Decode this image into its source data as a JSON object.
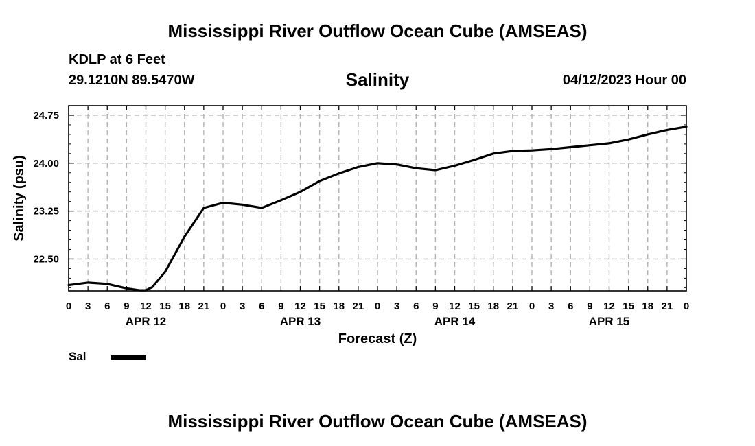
{
  "header": {
    "title": "Mississippi River Outflow Ocean Cube (AMSEAS)",
    "station": "KDLP at 6 Feet",
    "coordinates": "29.1210N  89.5470W",
    "parameter": "Salinity",
    "datetime": "04/12/2023 Hour 00"
  },
  "footer": {
    "title": "Mississippi River Outflow Ocean Cube (AMSEAS)"
  },
  "legend": {
    "label": "Sal",
    "color": "#000000"
  },
  "chart_data": {
    "type": "line",
    "title": "Salinity",
    "xlabel": "Forecast (Z)",
    "ylabel": "Salinity (psu)",
    "xlim": [
      0,
      96
    ],
    "ylim": [
      22.0,
      24.9
    ],
    "yticks": [
      22.5,
      23.25,
      24.0,
      24.75
    ],
    "ytick_labels": [
      "22.50",
      "23.25",
      "24.00",
      "24.75"
    ],
    "xticks": [
      0,
      3,
      6,
      9,
      12,
      15,
      18,
      21,
      24,
      27,
      30,
      33,
      36,
      39,
      42,
      45,
      48,
      51,
      54,
      57,
      60,
      63,
      66,
      69,
      72,
      75,
      78,
      81,
      84,
      87,
      90,
      93,
      96
    ],
    "xtick_labels": [
      "0",
      "3",
      "6",
      "9",
      "12",
      "15",
      "18",
      "21",
      "0",
      "3",
      "6",
      "9",
      "12",
      "15",
      "18",
      "21",
      "0",
      "3",
      "6",
      "9",
      "12",
      "15",
      "18",
      "21",
      "0",
      "3",
      "6",
      "9",
      "12",
      "15",
      "18",
      "21",
      "0"
    ],
    "day_labels": [
      {
        "x": 12,
        "label": "APR 12"
      },
      {
        "x": 36,
        "label": "APR 13"
      },
      {
        "x": 60,
        "label": "APR 14"
      },
      {
        "x": 84,
        "label": "APR 15"
      }
    ],
    "grid": true,
    "series": [
      {
        "name": "Sal",
        "x": [
          0,
          3,
          6,
          9,
          11,
          12,
          13,
          15,
          18,
          21,
          24,
          27,
          30,
          33,
          36,
          39,
          42,
          45,
          48,
          51,
          54,
          57,
          60,
          63,
          66,
          69,
          72,
          75,
          78,
          81,
          84,
          87,
          90,
          93,
          96
        ],
        "values": [
          22.09,
          22.13,
          22.11,
          22.04,
          22.01,
          22.01,
          22.06,
          22.3,
          22.85,
          23.3,
          23.38,
          23.35,
          23.3,
          23.42,
          23.55,
          23.72,
          23.84,
          23.94,
          24.0,
          23.98,
          23.92,
          23.89,
          23.96,
          24.05,
          24.15,
          24.19,
          24.2,
          24.22,
          24.25,
          24.28,
          24.31,
          24.37,
          24.45,
          24.52,
          24.57
        ]
      }
    ]
  }
}
